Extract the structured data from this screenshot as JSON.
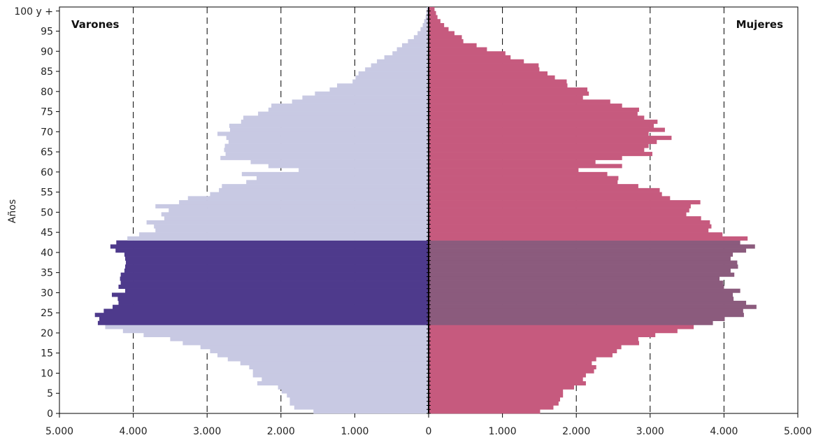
{
  "chart_data": {
    "type": "bar",
    "subtype": "population-pyramid",
    "title": "",
    "xlabel": "",
    "ylabel": "Años",
    "xlim": [
      -5000,
      5000
    ],
    "x_tick_labels": [
      "5.000",
      "4.000",
      "3.000",
      "2.000",
      "1.000",
      "0",
      "1.000",
      "2.000",
      "3.000",
      "4.000",
      "5.000"
    ],
    "x_tick_values": [
      -5000,
      -4000,
      -3000,
      -2000,
      -1000,
      0,
      1000,
      2000,
      3000,
      4000,
      5000
    ],
    "y_tick_labels": [
      "0",
      "5",
      "10",
      "15",
      "20",
      "25",
      "30",
      "35",
      "40",
      "45",
      "50",
      "55",
      "60",
      "65",
      "70",
      "75",
      "80",
      "85",
      "90",
      "95",
      "100 y +"
    ],
    "y_tick_values": [
      0,
      5,
      10,
      15,
      20,
      25,
      30,
      35,
      40,
      45,
      50,
      55,
      60,
      65,
      70,
      75,
      80,
      85,
      90,
      95,
      100
    ],
    "grid": "vertical-dashed",
    "highlight_ages": [
      22,
      42
    ],
    "colors": {
      "male": "#c8c9e3",
      "male_highlight": "#4e3a8c",
      "female": "#c65a7e",
      "female_highlight": "#8b5b7d",
      "axis": "#000000",
      "grid": "#000000"
    },
    "series": [
      {
        "name": "Varones",
        "label_position": "top-left",
        "ages": [
          0,
          1,
          2,
          3,
          4,
          5,
          6,
          7,
          8,
          9,
          10,
          11,
          12,
          13,
          14,
          15,
          16,
          17,
          18,
          19,
          20,
          21,
          22,
          23,
          24,
          25,
          26,
          27,
          28,
          29,
          30,
          31,
          32,
          33,
          34,
          35,
          36,
          37,
          38,
          39,
          40,
          41,
          42,
          43,
          44,
          45,
          46,
          47,
          48,
          49,
          50,
          51,
          52,
          53,
          54,
          55,
          56,
          57,
          58,
          59,
          60,
          61,
          62,
          63,
          64,
          65,
          66,
          67,
          68,
          69,
          70,
          71,
          72,
          73,
          74,
          75,
          76,
          77,
          78,
          79,
          80,
          81,
          82,
          83,
          84,
          85,
          86,
          87,
          88,
          89,
          90,
          91,
          92,
          93,
          94,
          95,
          96,
          97,
          98,
          99,
          100
        ],
        "values": [
          1560,
          1820,
          1880,
          1880,
          1920,
          1990,
          2040,
          2320,
          2260,
          2380,
          2380,
          2430,
          2550,
          2720,
          2860,
          2960,
          3090,
          3330,
          3500,
          3860,
          4140,
          4380,
          4480,
          4460,
          4520,
          4400,
          4280,
          4200,
          4210,
          4290,
          4110,
          4200,
          4170,
          4180,
          4170,
          4120,
          4110,
          4100,
          4110,
          4120,
          4240,
          4310,
          4230,
          4080,
          3920,
          3700,
          3720,
          3820,
          3580,
          3620,
          3520,
          3700,
          3380,
          3260,
          2960,
          2840,
          2800,
          2470,
          2330,
          2530,
          1760,
          2170,
          2410,
          2820,
          2750,
          2770,
          2760,
          2710,
          2740,
          2860,
          2690,
          2700,
          2540,
          2510,
          2310,
          2170,
          2130,
          1850,
          1710,
          1540,
          1340,
          1240,
          1030,
          990,
          950,
          860,
          780,
          700,
          600,
          490,
          430,
          360,
          280,
          200,
          150,
          110,
          80,
          60,
          40,
          30,
          25
        ],
        "highlight_values": [
          4480,
          4460,
          4520,
          4400,
          4280,
          4200,
          4210,
          4290,
          4110,
          4200,
          4170,
          4180,
          4170,
          4120,
          4110,
          4100,
          4110,
          4120,
          4240,
          4310,
          4230
        ]
      },
      {
        "name": "Mujeres",
        "label_position": "top-right",
        "ages": [
          0,
          1,
          2,
          3,
          4,
          5,
          6,
          7,
          8,
          9,
          10,
          11,
          12,
          13,
          14,
          15,
          16,
          17,
          18,
          19,
          20,
          21,
          22,
          23,
          24,
          25,
          26,
          27,
          28,
          29,
          30,
          31,
          32,
          33,
          34,
          35,
          36,
          37,
          38,
          39,
          40,
          41,
          42,
          43,
          44,
          45,
          46,
          47,
          48,
          49,
          50,
          51,
          52,
          53,
          54,
          55,
          56,
          57,
          58,
          59,
          60,
          61,
          62,
          63,
          64,
          65,
          66,
          67,
          68,
          69,
          70,
          71,
          72,
          73,
          74,
          75,
          76,
          77,
          78,
          79,
          80,
          81,
          82,
          83,
          84,
          85,
          86,
          87,
          88,
          89,
          90,
          91,
          92,
          93,
          94,
          95,
          96,
          97,
          98,
          99,
          100
        ],
        "values": [
          1510,
          1690,
          1760,
          1780,
          1820,
          1820,
          1970,
          2130,
          2090,
          2130,
          2240,
          2270,
          2210,
          2270,
          2490,
          2550,
          2610,
          2850,
          2840,
          3070,
          3370,
          3590,
          3850,
          4010,
          4270,
          4260,
          4440,
          4300,
          4130,
          4120,
          4220,
          4000,
          3990,
          3940,
          4140,
          4090,
          4190,
          4180,
          4090,
          4120,
          4300,
          4420,
          4220,
          4320,
          3980,
          3790,
          3830,
          3810,
          3690,
          3490,
          3530,
          3550,
          3680,
          3270,
          3160,
          3130,
          2840,
          2560,
          2570,
          2420,
          2030,
          2620,
          2260,
          2620,
          3030,
          2920,
          2980,
          3090,
          3290,
          2980,
          3200,
          3050,
          3100,
          2920,
          2830,
          2850,
          2620,
          2460,
          2090,
          2170,
          2150,
          1880,
          1870,
          1710,
          1610,
          1500,
          1490,
          1290,
          1110,
          1040,
          790,
          650,
          470,
          450,
          350,
          270,
          210,
          160,
          120,
          100,
          80
        ],
        "highlight_values": [
          3850,
          4010,
          4270,
          4260,
          4440,
          4300,
          4130,
          4120,
          4220,
          4000,
          3990,
          3940,
          4140,
          4090,
          4190,
          4180,
          4090,
          4120,
          4300,
          4420,
          4220
        ]
      }
    ]
  }
}
